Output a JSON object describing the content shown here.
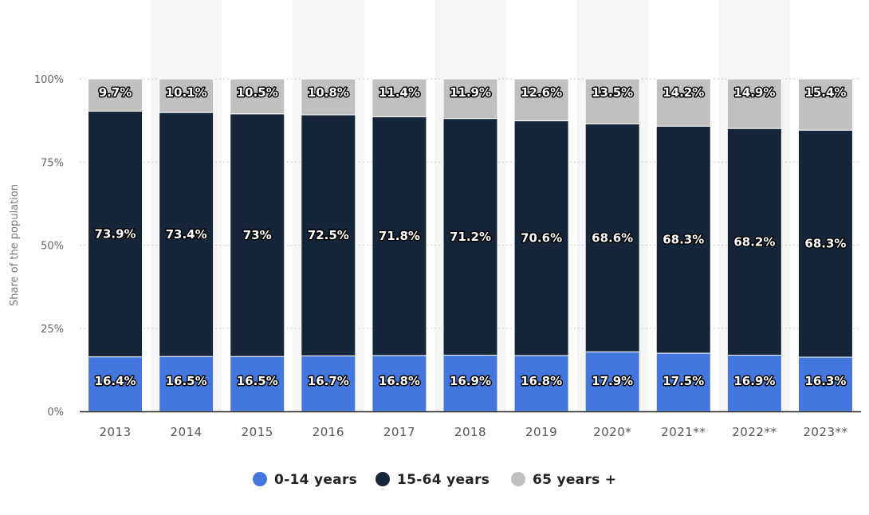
{
  "chart_data": {
    "type": "bar",
    "stacked": true,
    "categories": [
      "2013",
      "2014",
      "2015",
      "2016",
      "2017",
      "2018",
      "2019",
      "2020*",
      "2021**",
      "2022**",
      "2023**"
    ],
    "series": [
      {
        "name": "0-14 years",
        "color": "#4477dd",
        "values": [
          16.4,
          16.5,
          16.5,
          16.7,
          16.8,
          16.9,
          16.8,
          17.9,
          17.5,
          16.9,
          16.3
        ],
        "labels": [
          "16.4%",
          "16.5%",
          "16.5%",
          "16.7%",
          "16.8%",
          "16.9%",
          "16.8%",
          "17.9%",
          "17.5%",
          "16.9%",
          "16.3%"
        ]
      },
      {
        "name": "15-64 years",
        "color": "#15253a",
        "values": [
          73.9,
          73.4,
          73,
          72.5,
          71.8,
          71.2,
          70.6,
          68.6,
          68.3,
          68.2,
          68.3
        ],
        "labels": [
          "73.9%",
          "73.4%",
          "73%",
          "72.5%",
          "71.8%",
          "71.2%",
          "70.6%",
          "68.6%",
          "68.3%",
          "68.2%",
          "68.3%"
        ]
      },
      {
        "name": "65 years +",
        "color": "#c0c0c0",
        "values": [
          9.7,
          10.1,
          10.5,
          10.8,
          11.4,
          11.9,
          12.6,
          13.5,
          14.2,
          14.9,
          15.4
        ],
        "labels": [
          "9.7%",
          "10.1%",
          "10.5%",
          "10.8%",
          "11.4%",
          "11.9%",
          "12.6%",
          "13.5%",
          "14.2%",
          "14.9%",
          "15.4%"
        ]
      }
    ],
    "ylabel": "Share of the population",
    "ylim": [
      0,
      100
    ],
    "yticks": [
      {
        "value": 0,
        "label": "0%"
      },
      {
        "value": 25,
        "label": "25%"
      },
      {
        "value": 50,
        "label": "50%"
      },
      {
        "value": 75,
        "label": "75%"
      },
      {
        "value": 100,
        "label": "100%"
      }
    ],
    "grid": true,
    "legend_position": "bottom",
    "column_band_color": "#f5f5f5"
  }
}
